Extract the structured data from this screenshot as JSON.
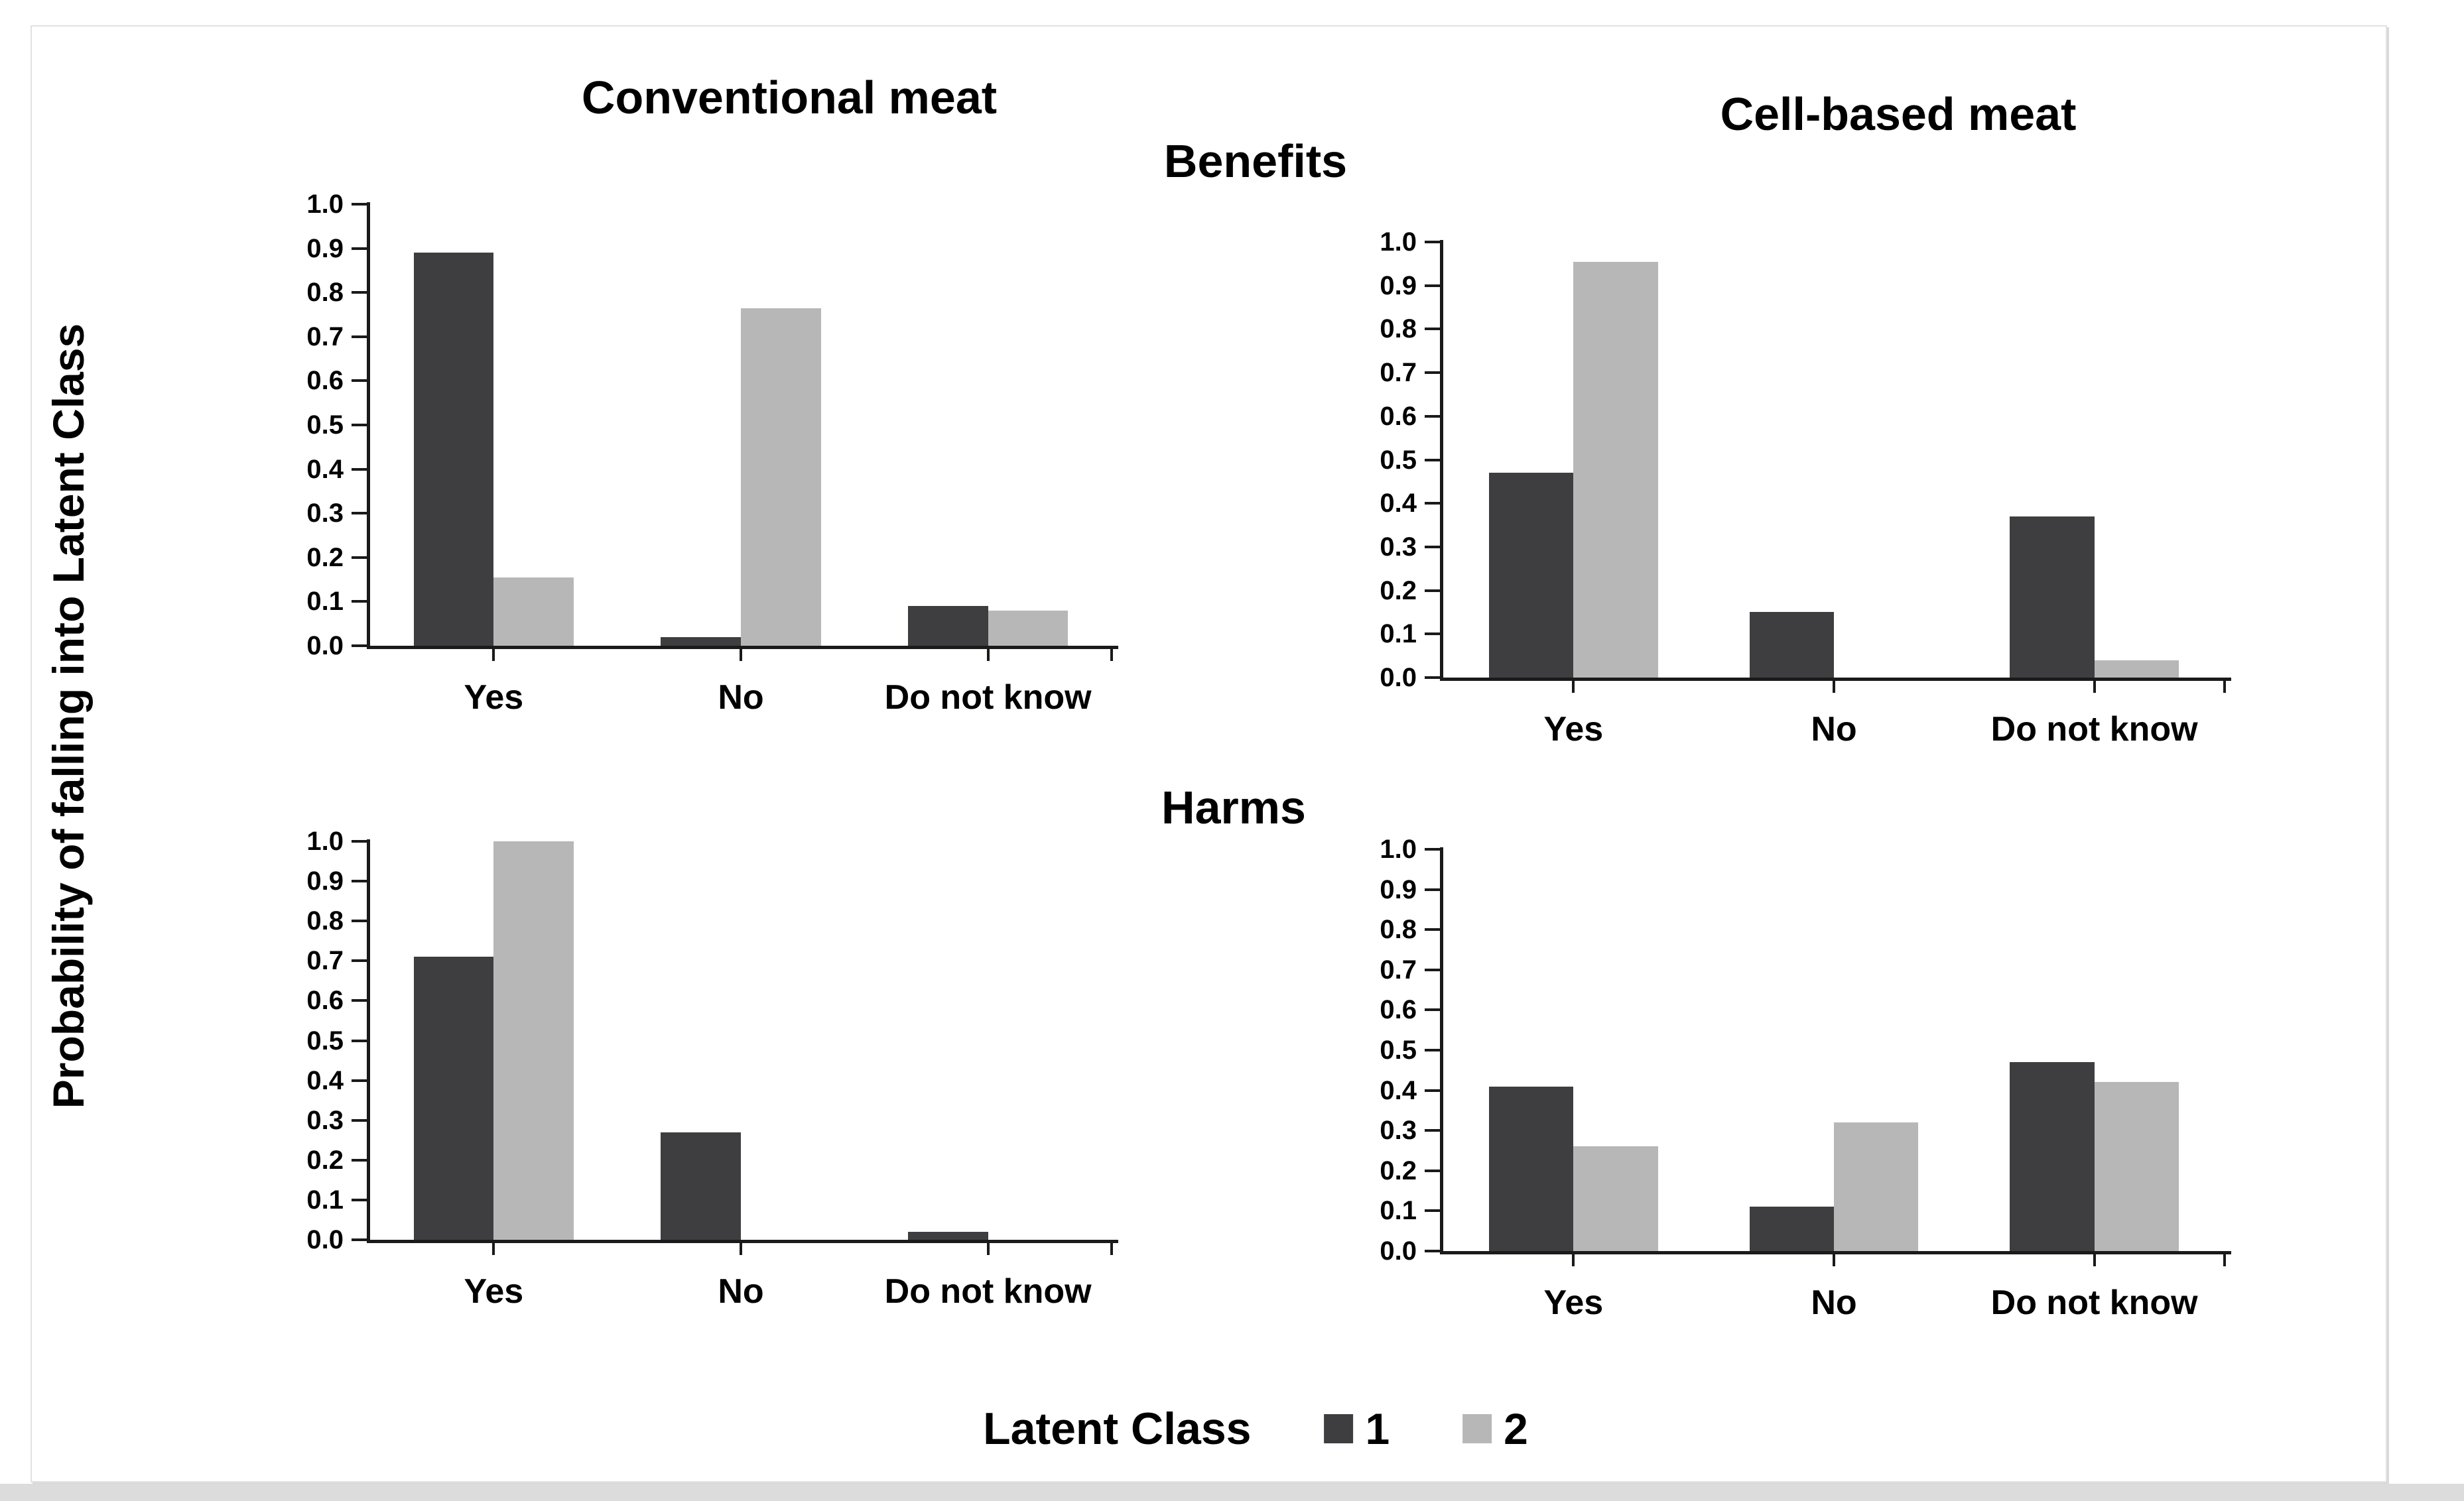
{
  "figure": {
    "column_titles": [
      "Conventional meat",
      "Cell-based meat"
    ],
    "row_titles": [
      "Benefits",
      "Harms"
    ],
    "y_axis_label": "Probability of falling into Latent Class",
    "legend": {
      "title": "Latent Class",
      "entries": [
        {
          "label": "1",
          "color": "#3e3e40"
        },
        {
          "label": "2",
          "color": "#b7b7b7"
        }
      ]
    },
    "colors": {
      "class1": "#3e3e40",
      "class2": "#b7b7b7",
      "axis": "#1a1a1a"
    }
  },
  "chart_data": [
    {
      "type": "bar",
      "column": "Conventional meat",
      "row": "Benefits",
      "categories": [
        "Yes",
        "No",
        "Do not know"
      ],
      "series": [
        {
          "name": "1",
          "color": "#3e3e40",
          "values": [
            0.89,
            0.02,
            0.09
          ]
        },
        {
          "name": "2",
          "color": "#b7b7b7",
          "values": [
            0.155,
            0.765,
            0.08
          ]
        }
      ],
      "ylim": [
        0,
        1
      ],
      "y_ticks": [
        "0.0",
        "0.1",
        "0.2",
        "0.3",
        "0.4",
        "0.5",
        "0.6",
        "0.7",
        "0.8",
        "0.9",
        "1.0"
      ],
      "legend_position": "bottom",
      "grid": false
    },
    {
      "type": "bar",
      "column": "Cell-based meat",
      "row": "Benefits",
      "categories": [
        "Yes",
        "No",
        "Do not know"
      ],
      "series": [
        {
          "name": "1",
          "color": "#3e3e40",
          "values": [
            0.47,
            0.15,
            0.37
          ]
        },
        {
          "name": "2",
          "color": "#b7b7b7",
          "values": [
            0.955,
            0,
            0.04
          ]
        }
      ],
      "ylim": [
        0,
        1
      ],
      "y_ticks": [
        "0.0",
        "0.1",
        "0.2",
        "0.3",
        "0.4",
        "0.5",
        "0.6",
        "0.7",
        "0.8",
        "0.9",
        "1.0"
      ],
      "legend_position": "bottom",
      "grid": false
    },
    {
      "type": "bar",
      "column": "Conventional meat",
      "row": "Harms",
      "categories": [
        "Yes",
        "No",
        "Do not know"
      ],
      "series": [
        {
          "name": "1",
          "color": "#3e3e40",
          "values": [
            0.71,
            0.27,
            0.02
          ]
        },
        {
          "name": "2",
          "color": "#b7b7b7",
          "values": [
            1.0,
            0,
            0
          ]
        }
      ],
      "ylim": [
        0,
        1
      ],
      "y_ticks": [
        "0.0",
        "0.1",
        "0.2",
        "0.3",
        "0.4",
        "0.5",
        "0.6",
        "0.7",
        "0.8",
        "0.9",
        "1.0"
      ],
      "legend_position": "bottom",
      "grid": false
    },
    {
      "type": "bar",
      "column": "Cell-based meat",
      "row": "Harms",
      "categories": [
        "Yes",
        "No",
        "Do not know"
      ],
      "series": [
        {
          "name": "1",
          "color": "#3e3e40",
          "values": [
            0.41,
            0.11,
            0.47
          ]
        },
        {
          "name": "2",
          "color": "#b7b7b7",
          "values": [
            0.26,
            0.32,
            0.42
          ]
        }
      ],
      "ylim": [
        0,
        1
      ],
      "y_ticks": [
        "0.0",
        "0.1",
        "0.2",
        "0.3",
        "0.4",
        "0.5",
        "0.6",
        "0.7",
        "0.8",
        "0.9",
        "1.0"
      ],
      "legend_position": "bottom",
      "grid": false
    }
  ]
}
